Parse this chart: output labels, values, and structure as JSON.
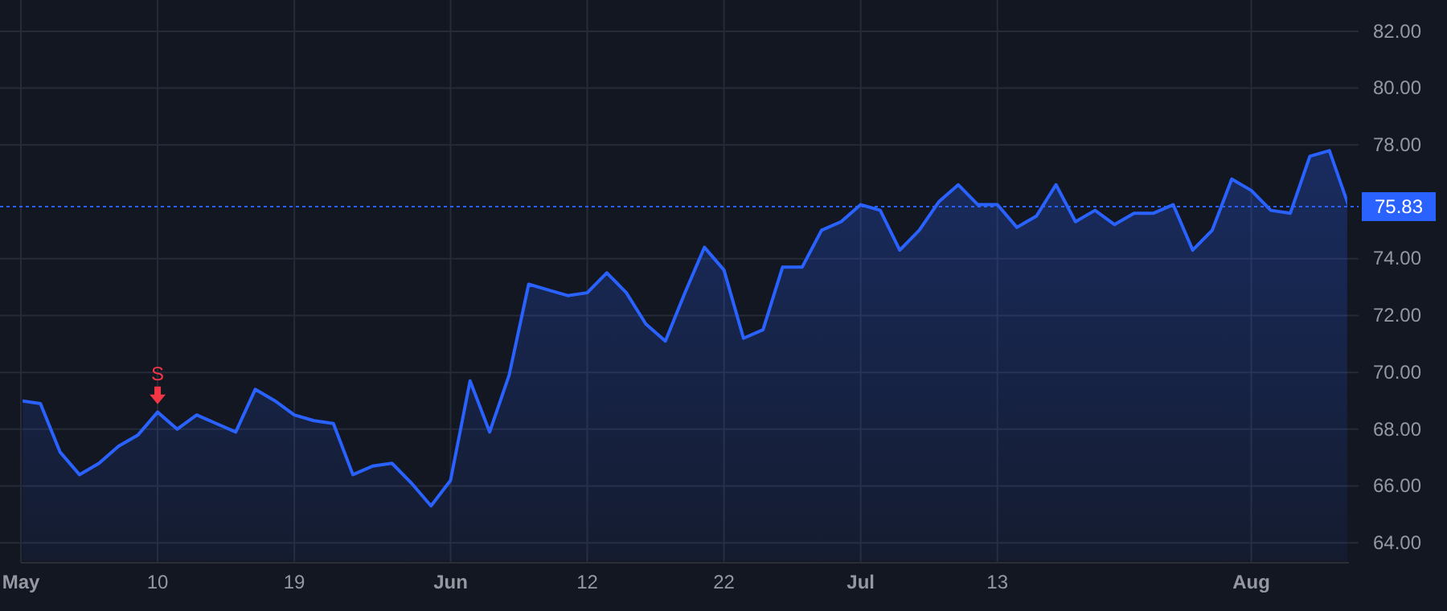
{
  "chart_data": {
    "type": "area",
    "categories": [
      "May",
      null,
      null,
      null,
      null,
      null,
      null,
      "10",
      null,
      null,
      null,
      null,
      null,
      null,
      "19",
      null,
      null,
      null,
      null,
      null,
      null,
      null,
      "Jun",
      null,
      null,
      null,
      null,
      null,
      null,
      "12",
      null,
      null,
      null,
      null,
      null,
      null,
      "22",
      null,
      null,
      null,
      null,
      null,
      null,
      "Jul",
      null,
      null,
      null,
      null,
      null,
      null,
      "13",
      null,
      null,
      null,
      null,
      null,
      null,
      null,
      null,
      null,
      null,
      null,
      null,
      "Aug",
      null,
      null,
      null,
      null,
      null
    ],
    "series": [
      {
        "color": "#2962ff",
        "values": [
          69.0,
          68.9,
          67.2,
          66.4,
          66.8,
          67.4,
          67.8,
          68.6,
          68.0,
          68.5,
          68.2,
          67.9,
          69.4,
          69.0,
          68.5,
          68.3,
          68.2,
          66.4,
          66.7,
          66.8,
          66.1,
          65.3,
          66.2,
          69.7,
          67.9,
          69.9,
          73.1,
          72.9,
          72.7,
          72.8,
          73.5,
          72.8,
          71.7,
          71.1,
          72.8,
          74.4,
          73.6,
          71.2,
          71.5,
          73.7,
          73.7,
          75.0,
          75.3,
          75.9,
          75.7,
          74.3,
          75.0,
          76.0,
          76.6,
          75.9,
          75.9,
          75.1,
          75.5,
          76.6,
          75.3,
          75.7,
          75.2,
          75.6,
          75.6,
          75.9,
          74.3,
          75.0,
          76.8,
          76.4,
          75.7,
          75.6,
          77.6,
          77.8,
          75.83
        ]
      }
    ],
    "ylim": [
      63.3,
      83.1
    ],
    "yticks": [
      {
        "value": 64,
        "label": "64.00"
      },
      {
        "value": 66,
        "label": "66.00"
      },
      {
        "value": 68,
        "label": "68.00"
      },
      {
        "value": 70,
        "label": "70.00"
      },
      {
        "value": 72,
        "label": "72.00"
      },
      {
        "value": 74,
        "label": "74.00"
      },
      {
        "value": 78,
        "label": "78.00"
      },
      {
        "value": 80,
        "label": "80.00"
      },
      {
        "value": 82,
        "label": "82.00"
      }
    ],
    "grid": true,
    "ref_lines": [
      {
        "axis": "y",
        "value": 75.83,
        "label": "75.83",
        "color": "#2962ff",
        "line_style": "dotted"
      }
    ],
    "annotations": [
      {
        "text": "S",
        "x": "10",
        "y": 68.6
      }
    ]
  }
}
